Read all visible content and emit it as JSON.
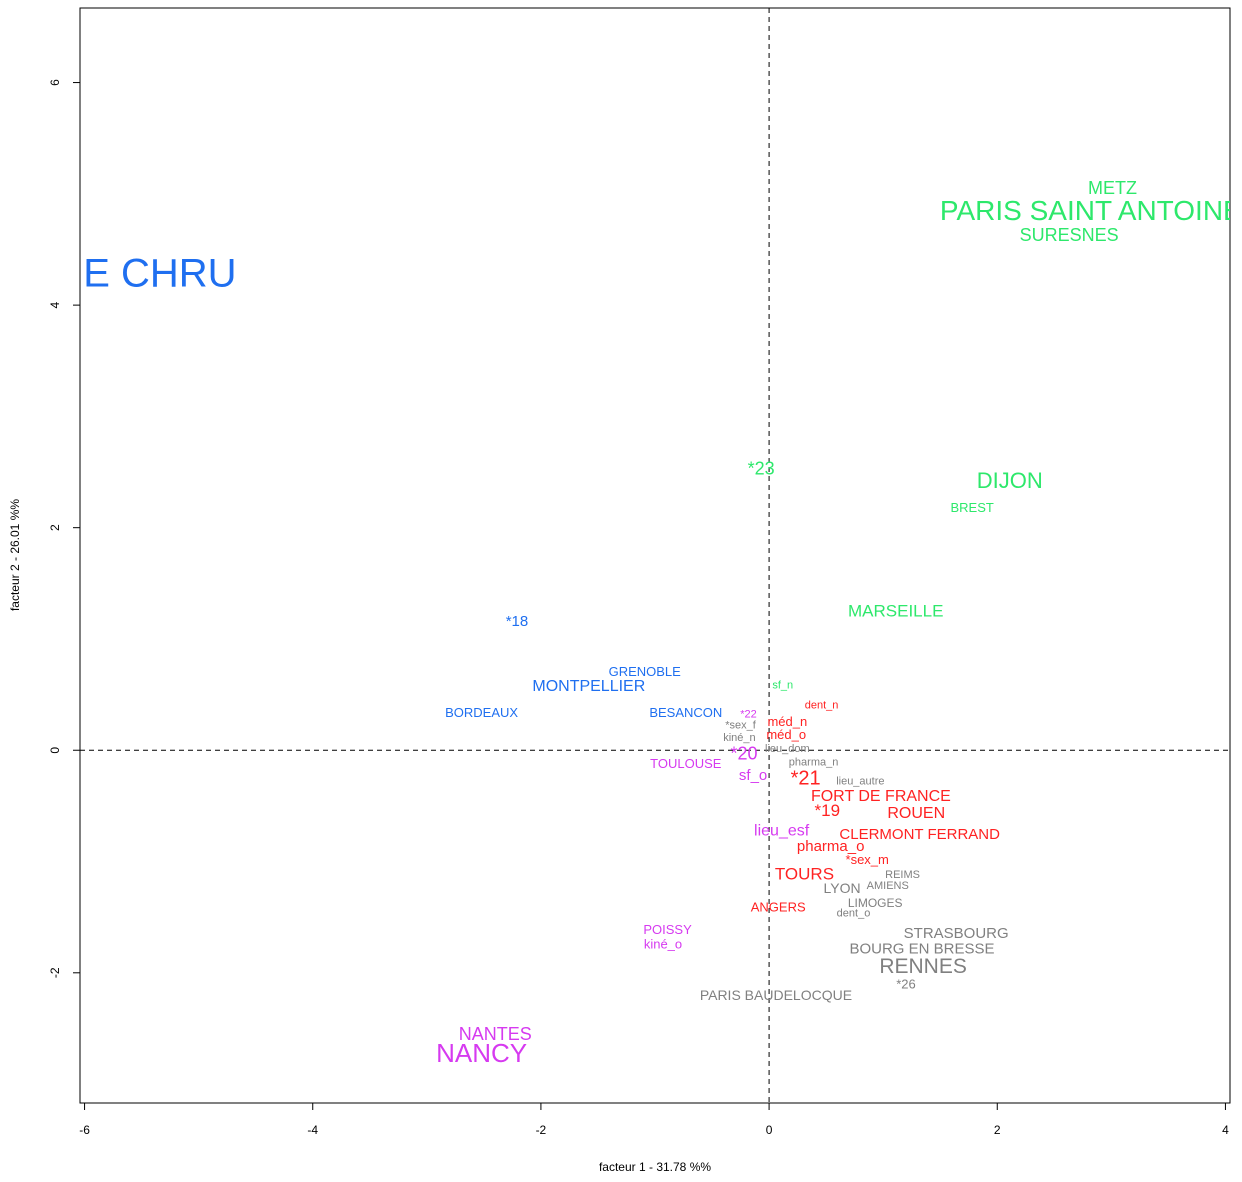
{
  "chart_data": {
    "type": "scatter",
    "xlabel": "facteur  1  - 31.78 %%",
    "ylabel": "facteur  2  - 26.01 %%",
    "xlim": [
      -6.04,
      4.04
    ],
    "ylim": [
      -3.17,
      6.67
    ],
    "xticks": [
      -6,
      -4,
      -2,
      0,
      2,
      4
    ],
    "yticks": [
      -2,
      0,
      2,
      4,
      6
    ],
    "series": [
      {
        "color": "#1f6ff0",
        "labels": [
          "E CHRU",
          "*18",
          "GRENOBLE",
          "MONTPELLIER",
          "BORDEAUX",
          "BESANCON"
        ],
        "x": [
          -5.34,
          -2.21,
          -1.09,
          -1.58,
          -2.52,
          -0.73
        ],
        "values": [
          4.26,
          1.15,
          0.7,
          0.57,
          0.33,
          0.33
        ]
      },
      {
        "color": "#2de86b",
        "labels": [
          "METZ",
          "PARIS SAINT ANTOINE",
          "SURESNES",
          "*23",
          "DIJON",
          "BREST",
          "MARSEILLE",
          "sf_n"
        ],
        "x": [
          3.01,
          2.82,
          2.63,
          -0.07,
          2.11,
          1.78,
          1.11,
          0.12
        ],
        "values": [
          5.04,
          4.83,
          4.62,
          2.52,
          2.41,
          2.17,
          1.24,
          0.58
        ]
      },
      {
        "color": "#d63af0",
        "labels": [
          "*22",
          "*20",
          "TOULOUSE",
          "sf_o",
          "lieu_esf",
          "POISSY",
          "kiné_o",
          "NANTES",
          "NANCY"
        ],
        "x": [
          -0.18,
          -0.22,
          -0.73,
          -0.14,
          0.11,
          -0.89,
          -0.93,
          -2.4,
          -2.52
        ],
        "values": [
          0.32,
          -0.04,
          -0.13,
          -0.23,
          -0.73,
          -1.62,
          -1.75,
          -2.56,
          -2.74
        ]
      },
      {
        "color": "#ff2222",
        "labels": [
          "dent_n",
          "méd_n",
          "méd_o",
          "*21",
          "FORT DE FRANCE",
          "*19",
          "ROUEN",
          "CLERMONT FERRAND",
          "pharma_o",
          "*sex_m",
          "TOURS",
          "ANGERS"
        ],
        "x": [
          0.46,
          0.16,
          0.15,
          0.32,
          0.98,
          0.51,
          1.29,
          1.32,
          0.54,
          0.86,
          0.31,
          0.08
        ],
        "values": [
          0.4,
          0.25,
          0.13,
          -0.26,
          -0.42,
          -0.55,
          -0.57,
          -0.76,
          -0.87,
          -0.99,
          -1.12,
          -1.42
        ]
      },
      {
        "color": "#808080",
        "labels": [
          "*sex_f",
          "kiné_n",
          "lieu_dom",
          "pharma_n",
          "lieu_autre",
          "REIMS",
          "AMIENS",
          "LYON",
          "LIMOGES",
          "dent_o",
          "STRASBOURG",
          "BOURG EN BRESSE",
          "RENNES",
          "*26",
          "PARIS BAUDELOCQUE"
        ],
        "x": [
          -0.25,
          -0.26,
          0.16,
          0.39,
          0.8,
          1.17,
          1.04,
          0.64,
          0.93,
          0.74,
          1.64,
          1.34,
          1.35,
          1.2,
          0.06
        ],
        "values": [
          0.22,
          0.11,
          0.01,
          -0.11,
          -0.28,
          -1.12,
          -1.22,
          -1.25,
          -1.38,
          -1.47,
          -1.65,
          -1.79,
          -1.95,
          -2.11,
          -2.21
        ]
      }
    ]
  }
}
